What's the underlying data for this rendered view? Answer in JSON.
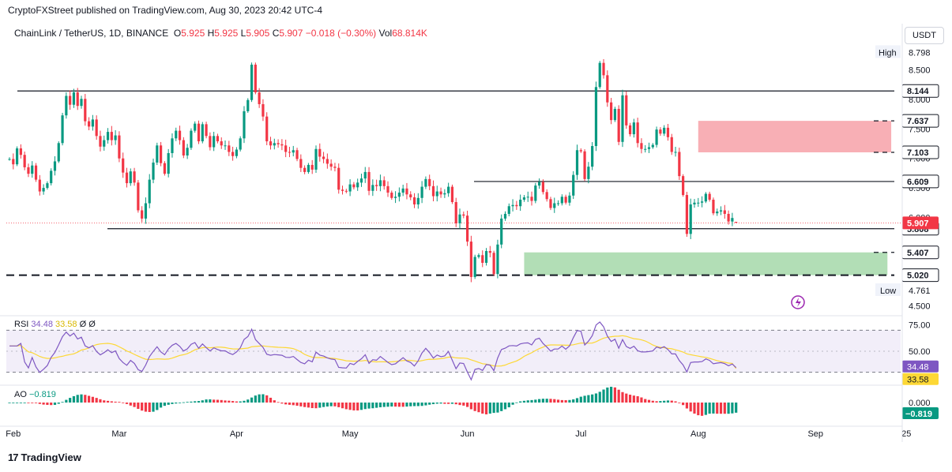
{
  "header": {
    "publisher": "CryptoFXStreet published on TradingView.com, Aug 30, 2023 20:42 UTC-4",
    "symbol": "ChainLink / TetherUS, 1D, BINANCE",
    "o_label": "O",
    "o_val": "5.925",
    "h_label": "H",
    "h_val": "5.925",
    "l_label": "L",
    "l_val": "5.905",
    "c_label": "C",
    "c_val": "5.907",
    "change": "−0.018 (−0.30%)",
    "vol_label": "Vol",
    "vol_val": "68.814K",
    "currency_button": "USDT"
  },
  "rsi_legend": {
    "name": "RSI",
    "v1": "34.48",
    "v2": "33.58",
    "v3": "Ø",
    "v4": "Ø"
  },
  "ao_legend": {
    "name": "AO",
    "value": "−0.819"
  },
  "footer": {
    "brand": "TradingView",
    "brand_mark": "17"
  },
  "colors": {
    "up": "#089981",
    "down": "#f23645",
    "rsi": "#7e57c2",
    "rsi_ma": "#fdd835",
    "zone_red": "#f7a1a8",
    "zone_green": "#a5d8a9",
    "text": "#131722"
  },
  "chart_data": {
    "type": "candlestick",
    "price_axis": {
      "ticks": [
        "8.500",
        "8.000",
        "7.500",
        "7.000",
        "6.500",
        "6.000",
        "4.500"
      ],
      "range": [
        4.4,
        8.95
      ]
    },
    "time_axis": {
      "labels": [
        "Feb",
        "Mar",
        "Apr",
        "May",
        "Jun",
        "Jul",
        "Aug",
        "Sep",
        "25"
      ]
    },
    "high_label": {
      "text": "High",
      "value": "8.798"
    },
    "low_label": {
      "text": "Low",
      "value": "4.761"
    },
    "current_price": "5.907",
    "levels": [
      {
        "value": 8.144,
        "label": "8.144",
        "style": "solid"
      },
      {
        "value": 7.637,
        "label": "7.637",
        "style": "dashed"
      },
      {
        "value": 7.103,
        "label": "7.103",
        "style": "dashed"
      },
      {
        "value": 6.609,
        "label": "6.609",
        "style": "solid"
      },
      {
        "value": 5.808,
        "label": "5.808",
        "style": "solid"
      },
      {
        "value": 5.407,
        "label": "5.407",
        "style": "dashed"
      },
      {
        "value": 5.02,
        "label": "5.020",
        "style": "dashed"
      }
    ],
    "zones": [
      {
        "type": "supply",
        "from": 7.103,
        "to": 7.637,
        "start": "Aug 1",
        "end": "Sep 21"
      },
      {
        "type": "demand",
        "from": 5.02,
        "to": 5.407,
        "start": "Jun 16",
        "end": "Sep 20"
      }
    ],
    "start_date": "2023-01-31",
    "closes": [
      6.99,
      6.9,
      7.17,
      7.06,
      6.85,
      6.74,
      6.88,
      6.64,
      6.44,
      6.5,
      6.58,
      6.79,
      6.95,
      7.26,
      7.73,
      8.06,
      7.91,
      8.12,
      7.89,
      8.01,
      7.63,
      7.54,
      7.66,
      7.38,
      7.2,
      7.31,
      7.45,
      7.31,
      7.39,
      7.0,
      6.76,
      6.58,
      6.78,
      6.59,
      6.12,
      5.98,
      6.24,
      6.64,
      6.93,
      7.22,
      6.92,
      6.74,
      7.09,
      7.34,
      7.47,
      7.31,
      7.05,
      7.18,
      7.47,
      7.59,
      7.29,
      7.58,
      7.38,
      7.19,
      7.38,
      7.29,
      7.22,
      7.22,
      7.11,
      7.04,
      7.15,
      7.34,
      7.8,
      7.99,
      8.59,
      8.12,
      7.92,
      7.71,
      7.29,
      7.22,
      7.26,
      7.24,
      7.22,
      7.11,
      7.1,
      7.14,
      6.99,
      6.84,
      6.77,
      6.89,
      6.81,
      7.16,
      7.03,
      6.99,
      6.91,
      6.86,
      6.84,
      6.47,
      6.45,
      6.44,
      6.56,
      6.51,
      6.59,
      6.66,
      6.77,
      6.45,
      6.55,
      6.53,
      6.63,
      6.53,
      6.42,
      6.33,
      6.35,
      6.42,
      6.49,
      6.39,
      6.34,
      6.22,
      6.33,
      6.52,
      6.65,
      6.53,
      6.36,
      6.44,
      6.39,
      6.41,
      6.52,
      6.26,
      5.9,
      6.05,
      6.03,
      5.59,
      4.99,
      5.33,
      5.36,
      5.23,
      5.43,
      5.4,
      5.04,
      5.54,
      5.98,
      6.06,
      6.19,
      6.21,
      6.19,
      6.3,
      6.34,
      6.35,
      6.28,
      6.54,
      6.6,
      6.43,
      6.31,
      6.16,
      6.24,
      6.24,
      6.35,
      6.25,
      6.37,
      6.72,
      7.14,
      7.12,
      6.65,
      6.86,
      7.21,
      8.21,
      8.62,
      8.41,
      7.95,
      7.65,
      7.84,
      7.28,
      8.07,
      7.56,
      7.41,
      7.61,
      7.26,
      7.16,
      7.16,
      7.19,
      7.23,
      7.49,
      7.42,
      7.52,
      7.36,
      7.11,
      7.11,
      6.7,
      6.38,
      5.72,
      6.22,
      6.25,
      6.25,
      6.27,
      6.4,
      6.3,
      6.07,
      6.1,
      6.12,
      6.06,
      5.93,
      5.99,
      5.91
    ],
    "rsi": {
      "levels": [
        "75.00",
        "50.00"
      ],
      "value": "34.48",
      "ma_value": "33.58"
    },
    "ao": {
      "axis_label": "0.000",
      "value": "−0.819"
    }
  }
}
